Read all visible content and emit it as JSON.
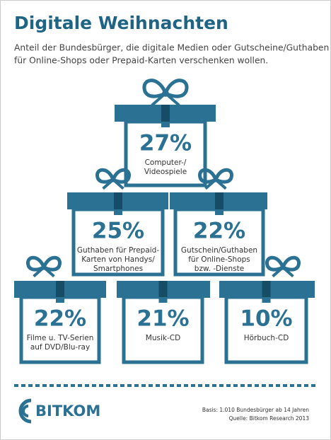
{
  "header": {
    "title": "Digitale Weihnachten",
    "subtitle": [
      "Anteil der Bundesbürger, die digitale Medien oder Gutscheine/Guthaben",
      "für Online-Shops oder Prepaid-Karten verschenken wollen."
    ]
  },
  "gifts": [
    {
      "value": "27%",
      "label": [
        "Computer-/",
        "Videospiele"
      ]
    },
    {
      "value": "25%",
      "label": [
        "Guthaben für Prepaid-",
        "Karten von Handys/",
        "Smartphones"
      ]
    },
    {
      "value": "22%",
      "label": [
        "Gutschein/Guthaben",
        "für Online-Shops",
        "bzw. -Dienste"
      ]
    },
    {
      "value": "22%",
      "label": [
        "Filme u. TV-Serien",
        "auf DVD/Blu-ray"
      ]
    },
    {
      "value": "21%",
      "label": [
        "Musik-CD"
      ]
    },
    {
      "value": "10%",
      "label": [
        "Hörbuch-CD"
      ]
    }
  ],
  "footer": {
    "logo": "BITKOM",
    "note": [
      "Basis: 1.010 Bundesbürger ab 14 Jahren",
      "Quelle: Bitkom Research 2013"
    ]
  }
}
